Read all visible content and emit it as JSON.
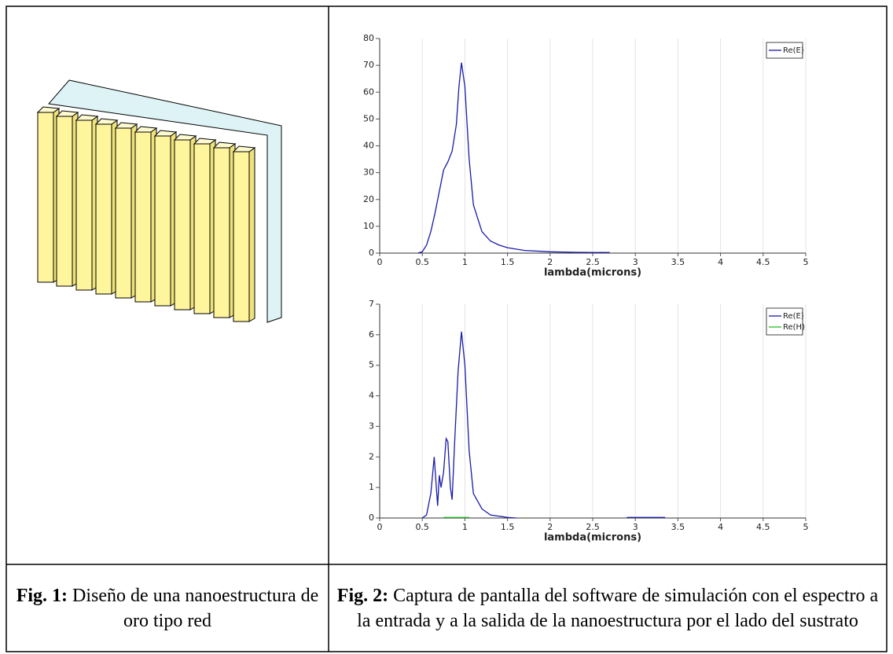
{
  "chart_data": [
    {
      "type": "line",
      "xlabel": "lambda(microns)",
      "x": [
        0.45,
        0.5,
        0.55,
        0.6,
        0.65,
        0.7,
        0.75,
        0.8,
        0.85,
        0.9,
        0.93,
        0.96,
        1.0,
        1.05,
        1.1,
        1.2,
        1.3,
        1.4,
        1.5,
        1.7,
        2.0,
        2.3,
        2.7
      ],
      "series": [
        {
          "name": "Re(E)",
          "color": "#1a1aa8",
          "values": [
            0,
            0.5,
            3,
            8,
            15,
            23,
            31,
            34,
            38,
            48,
            62,
            71,
            62,
            35,
            18,
            8,
            4.5,
            3,
            2,
            1,
            0.5,
            0.3,
            0.2
          ]
        }
      ],
      "xlim": [
        0,
        5
      ],
      "xticks": [
        0,
        0.5,
        1,
        1.5,
        2,
        2.5,
        3,
        3.5,
        4,
        4.5,
        5
      ],
      "ylim": [
        0,
        80
      ],
      "yticks": [
        0,
        10,
        20,
        30,
        40,
        50,
        60,
        70,
        80
      ],
      "grid": "x",
      "legend": "top-right"
    },
    {
      "type": "line",
      "xlabel": "lambda(microns)",
      "x": [
        0.5,
        0.55,
        0.6,
        0.64,
        0.66,
        0.68,
        0.7,
        0.72,
        0.75,
        0.78,
        0.8,
        0.83,
        0.85,
        0.88,
        0.92,
        0.96,
        1.0,
        1.05,
        1.1,
        1.2,
        1.3,
        1.5,
        1.6,
        2.0,
        2.9,
        3.35
      ],
      "series": [
        {
          "name": "Re(E)",
          "color": "#1a1aa8",
          "values": [
            0,
            0.1,
            0.8,
            2.0,
            1.2,
            0.4,
            1.4,
            1.0,
            1.5,
            2.6,
            2.5,
            1.0,
            0.6,
            2.5,
            4.8,
            6.1,
            5.0,
            2.2,
            0.8,
            0.3,
            0.1,
            0.02,
            0,
            null,
            0.02,
            0.02
          ]
        },
        {
          "name": "Re(H)",
          "color": "#22c022",
          "values": [
            null,
            null,
            null,
            null,
            null,
            null,
            null,
            null,
            0.02,
            0.02,
            0.02,
            0.02,
            0.02,
            0.02,
            0.02,
            0.02,
            0.02,
            0.02,
            null,
            null,
            null,
            null,
            null,
            null,
            null,
            null
          ]
        }
      ],
      "xlim": [
        0,
        5
      ],
      "xticks": [
        0,
        0.5,
        1,
        1.5,
        2,
        2.5,
        3,
        3.5,
        4,
        4.5,
        5
      ],
      "ylim": [
        0,
        7
      ],
      "yticks": [
        0,
        1,
        2,
        3,
        4,
        5,
        6,
        7
      ],
      "grid": "x",
      "legend": "top-right"
    }
  ],
  "figures": [
    {
      "label": "Fig. 1:",
      "caption": "Diseño de una nanoestructura de oro tipo red"
    },
    {
      "label": "Fig. 2:",
      "caption": "Captura de pantalla del software de simulación con el espectro a la entrada y a la salida de la nanoestructura por el lado del sustrato"
    }
  ]
}
